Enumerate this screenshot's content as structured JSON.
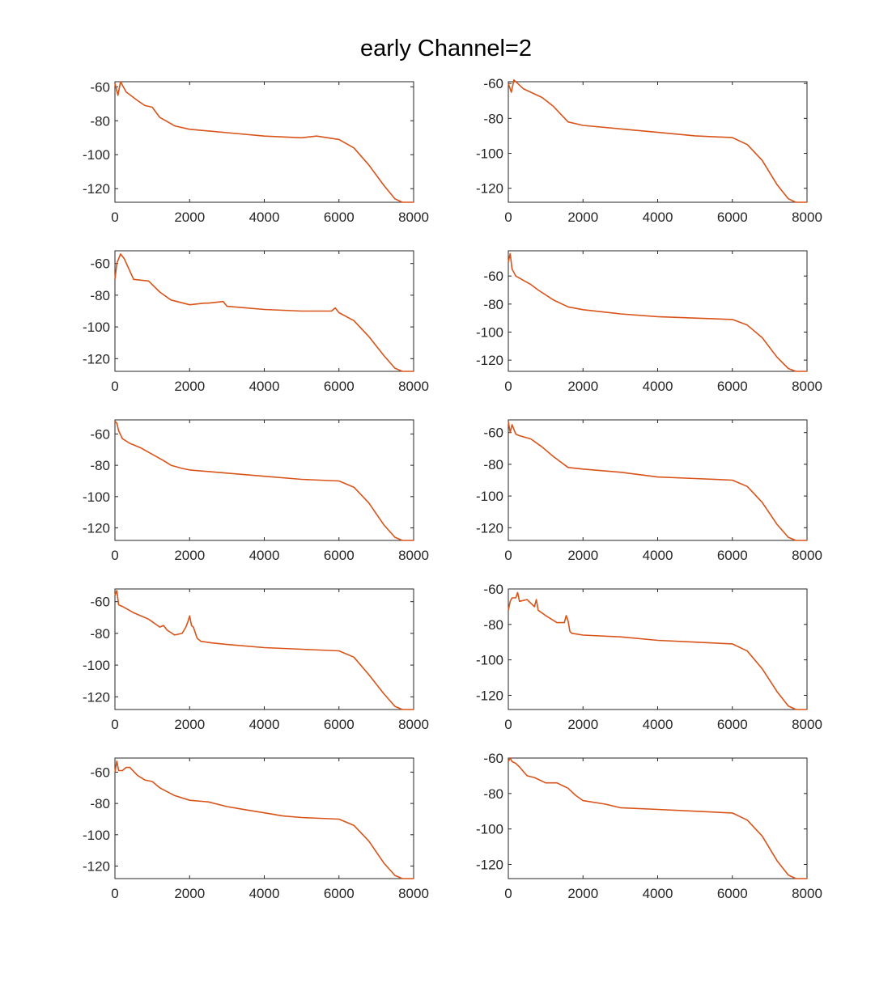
{
  "title": "early Channel=2",
  "line_color": "#D95319",
  "chart_data": [
    {
      "type": "line",
      "xlim": [
        0,
        8000
      ],
      "ylim": [
        -128,
        -57
      ],
      "xticks": [
        0,
        2000,
        4000,
        6000,
        8000
      ],
      "yticks": [
        -60,
        -80,
        -100,
        -120
      ],
      "series": [
        {
          "x": [
            0,
            80,
            150,
            300,
            600,
            800,
            1000,
            1200,
            1600,
            2000,
            3000,
            4000,
            5000,
            5400,
            6000,
            6400,
            6800,
            7200,
            7500,
            7700,
            8000
          ],
          "y": [
            -58,
            -65,
            -57,
            -63,
            -68,
            -71,
            -72,
            -78,
            -83,
            -85,
            -87,
            -89,
            -90,
            -89,
            -91,
            -96,
            -106,
            -118,
            -126,
            -128,
            -128
          ]
        }
      ]
    },
    {
      "type": "line",
      "xlim": [
        0,
        8000
      ],
      "ylim": [
        -128,
        -59
      ],
      "xticks": [
        0,
        2000,
        4000,
        6000,
        8000
      ],
      "yticks": [
        -60,
        -80,
        -100,
        -120
      ],
      "series": [
        {
          "x": [
            0,
            80,
            150,
            400,
            700,
            900,
            1200,
            1600,
            2000,
            3000,
            4000,
            5000,
            6000,
            6400,
            6800,
            7200,
            7500,
            7700,
            8000
          ],
          "y": [
            -60,
            -65,
            -58,
            -63,
            -66,
            -68,
            -73,
            -82,
            -84,
            -86,
            -88,
            -90,
            -91,
            -95,
            -104,
            -118,
            -126,
            -128,
            -128
          ]
        }
      ]
    },
    {
      "type": "line",
      "xlim": [
        0,
        8000
      ],
      "ylim": [
        -128,
        -52
      ],
      "xticks": [
        0,
        2000,
        4000,
        6000,
        8000
      ],
      "yticks": [
        -60,
        -80,
        -100,
        -120
      ],
      "series": [
        {
          "x": [
            0,
            50,
            150,
            250,
            500,
            900,
            1200,
            1500,
            2000,
            2400,
            2500,
            2900,
            3000,
            4000,
            5000,
            5800,
            5900,
            6000,
            6400,
            6800,
            7200,
            7500,
            7700,
            8000
          ],
          "y": [
            -70,
            -60,
            -54,
            -57,
            -70,
            -71,
            -78,
            -83,
            -86,
            -85,
            -85,
            -84,
            -87,
            -89,
            -90,
            -90,
            -88,
            -91,
            -96,
            -106,
            -118,
            -126,
            -128,
            -128
          ]
        }
      ]
    },
    {
      "type": "line",
      "xlim": [
        0,
        8000
      ],
      "ylim": [
        -128,
        -42
      ],
      "xticks": [
        0,
        2000,
        4000,
        6000,
        8000
      ],
      "yticks": [
        -60,
        -80,
        -100,
        -120
      ],
      "series": [
        {
          "x": [
            0,
            50,
            100,
            200,
            400,
            600,
            800,
            1200,
            1600,
            2000,
            3000,
            4000,
            5000,
            6000,
            6400,
            6800,
            7200,
            7500,
            7700,
            8000
          ],
          "y": [
            -50,
            -44,
            -55,
            -60,
            -63,
            -66,
            -70,
            -77,
            -82,
            -84,
            -87,
            -89,
            -90,
            -91,
            -95,
            -104,
            -118,
            -126,
            -128,
            -128
          ]
        }
      ]
    },
    {
      "type": "line",
      "xlim": [
        0,
        8000
      ],
      "ylim": [
        -128,
        -51
      ],
      "xticks": [
        0,
        2000,
        4000,
        6000,
        8000
      ],
      "yticks": [
        -60,
        -80,
        -100,
        -120
      ],
      "series": [
        {
          "x": [
            0,
            50,
            100,
            200,
            400,
            700,
            1000,
            1300,
            1500,
            1800,
            2000,
            3000,
            4000,
            5000,
            6000,
            6400,
            6800,
            7200,
            7500,
            7700,
            8000
          ],
          "y": [
            -52,
            -53,
            -58,
            -63,
            -66,
            -69,
            -73,
            -77,
            -80,
            -82,
            -83,
            -85,
            -87,
            -89,
            -90,
            -94,
            -104,
            -118,
            -126,
            -128,
            -128
          ]
        }
      ]
    },
    {
      "type": "line",
      "xlim": [
        0,
        8000
      ],
      "ylim": [
        -128,
        -52
      ],
      "xticks": [
        0,
        2000,
        4000,
        6000,
        8000
      ],
      "yticks": [
        -60,
        -80,
        -100,
        -120
      ],
      "series": [
        {
          "x": [
            0,
            50,
            100,
            200,
            300,
            600,
            900,
            1200,
            1600,
            2000,
            3000,
            4000,
            5000,
            6000,
            6400,
            6800,
            7200,
            7500,
            7700,
            8000
          ],
          "y": [
            -53,
            -60,
            -55,
            -61,
            -62,
            -64,
            -69,
            -75,
            -82,
            -83,
            -85,
            -88,
            -89,
            -90,
            -94,
            -104,
            -118,
            -126,
            -128,
            -128
          ]
        }
      ]
    },
    {
      "type": "line",
      "xlim": [
        0,
        8000
      ],
      "ylim": [
        -128,
        -52
      ],
      "xticks": [
        0,
        2000,
        4000,
        6000,
        8000
      ],
      "yticks": [
        -60,
        -80,
        -100,
        -120
      ],
      "series": [
        {
          "x": [
            0,
            50,
            100,
            200,
            500,
            900,
            1200,
            1300,
            1400,
            1600,
            1800,
            1900,
            1950,
            2000,
            2050,
            2100,
            2200,
            2300,
            2600,
            3000,
            4000,
            5000,
            6000,
            6400,
            6800,
            7200,
            7500,
            7700,
            8000
          ],
          "y": [
            -56,
            -53,
            -62,
            -63,
            -67,
            -71,
            -76,
            -75,
            -78,
            -81,
            -80,
            -76,
            -73,
            -69,
            -75,
            -76,
            -83,
            -85,
            -86,
            -87,
            -89,
            -90,
            -91,
            -95,
            -106,
            -118,
            -126,
            -128,
            -128
          ]
        }
      ]
    },
    {
      "type": "line",
      "xlim": [
        0,
        8000
      ],
      "ylim": [
        -128,
        -60
      ],
      "xticks": [
        0,
        2000,
        4000,
        6000,
        8000
      ],
      "yticks": [
        -60,
        -80,
        -100,
        -120
      ],
      "series": [
        {
          "x": [
            0,
            50,
            100,
            200,
            250,
            300,
            500,
            700,
            750,
            800,
            1000,
            1300,
            1500,
            1550,
            1600,
            1650,
            1700,
            2000,
            3000,
            4000,
            5000,
            6000,
            6400,
            6800,
            7200,
            7500,
            7700,
            8000
          ],
          "y": [
            -72,
            -67,
            -65,
            -65,
            -62,
            -67,
            -66,
            -70,
            -66,
            -72,
            -75,
            -79,
            -79,
            -75,
            -78,
            -84,
            -85,
            -86,
            -87,
            -89,
            -90,
            -91,
            -95,
            -105,
            -118,
            -126,
            -128,
            -128
          ]
        }
      ]
    },
    {
      "type": "line",
      "xlim": [
        0,
        8000
      ],
      "ylim": [
        -128,
        -51
      ],
      "xticks": [
        0,
        2000,
        4000,
        6000,
        8000
      ],
      "yticks": [
        -60,
        -80,
        -100,
        -120
      ],
      "series": [
        {
          "x": [
            0,
            50,
            100,
            200,
            300,
            400,
            600,
            800,
            1000,
            1200,
            1600,
            2000,
            2500,
            3000,
            3500,
            4000,
            4500,
            5000,
            6000,
            6400,
            6800,
            7200,
            7500,
            7700,
            8000
          ],
          "y": [
            -60,
            -53,
            -59,
            -59,
            -57,
            -57,
            -62,
            -65,
            -66,
            -70,
            -75,
            -78,
            -79,
            -82,
            -84,
            -86,
            -88,
            -89,
            -90,
            -94,
            -104,
            -118,
            -126,
            -128,
            -128
          ]
        }
      ]
    },
    {
      "type": "line",
      "xlim": [
        0,
        8000
      ],
      "ylim": [
        -128,
        -60
      ],
      "xticks": [
        0,
        2000,
        4000,
        6000,
        8000
      ],
      "yticks": [
        -60,
        -80,
        -100,
        -120
      ],
      "series": [
        {
          "x": [
            0,
            50,
            100,
            200,
            300,
            500,
            700,
            1000,
            1300,
            1500,
            1600,
            1800,
            2000,
            2600,
            3000,
            4000,
            5000,
            6000,
            6400,
            6800,
            7200,
            7500,
            7700,
            8000
          ],
          "y": [
            -62,
            -60,
            -62,
            -63,
            -65,
            -70,
            -71,
            -74,
            -74,
            -76,
            -77,
            -81,
            -84,
            -86,
            -88,
            -89,
            -90,
            -91,
            -95,
            -104,
            -118,
            -126,
            -128,
            -128
          ]
        }
      ]
    }
  ]
}
